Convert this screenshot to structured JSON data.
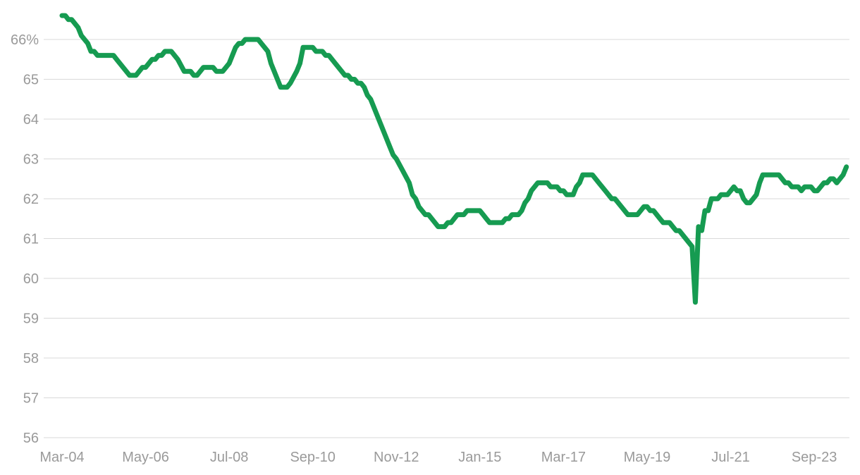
{
  "chart_data": {
    "type": "line",
    "title": "",
    "xlabel": "",
    "ylabel": "",
    "y_unit_suffix": "%",
    "ylim": [
      56,
      66.6
    ],
    "y_ticks": [
      56,
      57,
      58,
      59,
      60,
      61,
      62,
      63,
      64,
      65,
      66
    ],
    "y_tick_labels": [
      "56",
      "57",
      "58",
      "59",
      "60",
      "61",
      "62",
      "63",
      "64",
      "65",
      "66%"
    ],
    "x_range": [
      "2004-03",
      "2024-04"
    ],
    "x_tick_labels": [
      "Mar-04",
      "May-06",
      "Jul-08",
      "Sep-10",
      "Nov-12",
      "Jan-15",
      "Mar-17",
      "May-19",
      "Jul-21",
      "Sep-23"
    ],
    "x_tick_dates": [
      "2004-03",
      "2006-05",
      "2008-07",
      "2010-09",
      "2012-11",
      "2015-01",
      "2017-03",
      "2019-05",
      "2021-07",
      "2023-09"
    ],
    "grid": true,
    "legend": "none",
    "series": [
      {
        "color": "#169B51",
        "points": [
          [
            "2004-03",
            66.6
          ],
          [
            "2004-04",
            66.6
          ],
          [
            "2004-05",
            66.5
          ],
          [
            "2004-06",
            66.5
          ],
          [
            "2004-08",
            66.3
          ],
          [
            "2004-09",
            66.1
          ],
          [
            "2004-11",
            65.9
          ],
          [
            "2004-12",
            65.7
          ],
          [
            "2005-01",
            65.7
          ],
          [
            "2005-02",
            65.6
          ],
          [
            "2005-04",
            65.6
          ],
          [
            "2005-07",
            65.6
          ],
          [
            "2005-08",
            65.5
          ],
          [
            "2005-10",
            65.3
          ],
          [
            "2005-12",
            65.1
          ],
          [
            "2006-02",
            65.1
          ],
          [
            "2006-04",
            65.3
          ],
          [
            "2006-05",
            65.3
          ],
          [
            "2006-07",
            65.5
          ],
          [
            "2006-08",
            65.5
          ],
          [
            "2006-09",
            65.6
          ],
          [
            "2006-10",
            65.6
          ],
          [
            "2006-11",
            65.7
          ],
          [
            "2007-01",
            65.7
          ],
          [
            "2007-03",
            65.5
          ],
          [
            "2007-05",
            65.2
          ],
          [
            "2007-07",
            65.2
          ],
          [
            "2007-08",
            65.1
          ],
          [
            "2007-09",
            65.1
          ],
          [
            "2007-11",
            65.3
          ],
          [
            "2008-02",
            65.3
          ],
          [
            "2008-03",
            65.2
          ],
          [
            "2008-05",
            65.2
          ],
          [
            "2008-07",
            65.4
          ],
          [
            "2008-09",
            65.8
          ],
          [
            "2008-10",
            65.9
          ],
          [
            "2008-11",
            65.9
          ],
          [
            "2008-12",
            66.0
          ],
          [
            "2009-01",
            66.0
          ],
          [
            "2009-04",
            66.0
          ],
          [
            "2009-05",
            65.9
          ],
          [
            "2009-07",
            65.7
          ],
          [
            "2009-08",
            65.4
          ],
          [
            "2009-09",
            65.2
          ],
          [
            "2009-11",
            64.8
          ],
          [
            "2010-01",
            64.8
          ],
          [
            "2010-02",
            64.9
          ],
          [
            "2010-04",
            65.2
          ],
          [
            "2010-05",
            65.4
          ],
          [
            "2010-06",
            65.8
          ],
          [
            "2010-08",
            65.8
          ],
          [
            "2010-09",
            65.8
          ],
          [
            "2010-10",
            65.7
          ],
          [
            "2010-12",
            65.7
          ],
          [
            "2011-01",
            65.6
          ],
          [
            "2011-02",
            65.6
          ],
          [
            "2011-04",
            65.4
          ],
          [
            "2011-06",
            65.2
          ],
          [
            "2011-07",
            65.1
          ],
          [
            "2011-08",
            65.1
          ],
          [
            "2011-09",
            65.0
          ],
          [
            "2011-10",
            65.0
          ],
          [
            "2011-11",
            64.9
          ],
          [
            "2011-12",
            64.9
          ],
          [
            "2012-01",
            64.8
          ],
          [
            "2012-02",
            64.6
          ],
          [
            "2012-03",
            64.5
          ],
          [
            "2012-05",
            64.1
          ],
          [
            "2012-07",
            63.7
          ],
          [
            "2012-09",
            63.3
          ],
          [
            "2012-10",
            63.1
          ],
          [
            "2012-11",
            63.0
          ],
          [
            "2013-01",
            62.7
          ],
          [
            "2013-03",
            62.4
          ],
          [
            "2013-04",
            62.1
          ],
          [
            "2013-05",
            62.0
          ],
          [
            "2013-06",
            61.8
          ],
          [
            "2013-08",
            61.6
          ],
          [
            "2013-09",
            61.6
          ],
          [
            "2013-11",
            61.4
          ],
          [
            "2013-12",
            61.3
          ],
          [
            "2014-02",
            61.3
          ],
          [
            "2014-03",
            61.4
          ],
          [
            "2014-04",
            61.4
          ],
          [
            "2014-06",
            61.6
          ],
          [
            "2014-08",
            61.6
          ],
          [
            "2014-09",
            61.7
          ],
          [
            "2014-12",
            61.7
          ],
          [
            "2015-01",
            61.7
          ],
          [
            "2015-02",
            61.6
          ],
          [
            "2015-03",
            61.5
          ],
          [
            "2015-04",
            61.4
          ],
          [
            "2015-08",
            61.4
          ],
          [
            "2015-09",
            61.5
          ],
          [
            "2015-10",
            61.5
          ],
          [
            "2015-11",
            61.6
          ],
          [
            "2016-01",
            61.6
          ],
          [
            "2016-02",
            61.7
          ],
          [
            "2016-03",
            61.9
          ],
          [
            "2016-04",
            62.0
          ],
          [
            "2016-05",
            62.2
          ],
          [
            "2016-07",
            62.4
          ],
          [
            "2016-10",
            62.4
          ],
          [
            "2016-11",
            62.3
          ],
          [
            "2017-01",
            62.3
          ],
          [
            "2017-02",
            62.2
          ],
          [
            "2017-03",
            62.2
          ],
          [
            "2017-04",
            62.1
          ],
          [
            "2017-06",
            62.1
          ],
          [
            "2017-07",
            62.3
          ],
          [
            "2017-08",
            62.4
          ],
          [
            "2017-09",
            62.6
          ],
          [
            "2017-12",
            62.6
          ],
          [
            "2018-02",
            62.4
          ],
          [
            "2018-04",
            62.2
          ],
          [
            "2018-06",
            62.0
          ],
          [
            "2018-07",
            62.0
          ],
          [
            "2018-09",
            61.8
          ],
          [
            "2018-11",
            61.6
          ],
          [
            "2019-02",
            61.6
          ],
          [
            "2019-04",
            61.8
          ],
          [
            "2019-05",
            61.8
          ],
          [
            "2019-06",
            61.7
          ],
          [
            "2019-07",
            61.7
          ],
          [
            "2019-09",
            61.5
          ],
          [
            "2019-10",
            61.4
          ],
          [
            "2019-12",
            61.4
          ],
          [
            "2020-01",
            61.3
          ],
          [
            "2020-02",
            61.2
          ],
          [
            "2020-03",
            61.2
          ],
          [
            "2020-05",
            61.0
          ],
          [
            "2020-07",
            60.8
          ],
          [
            "2020-08",
            59.4
          ],
          [
            "2020-09",
            61.3
          ],
          [
            "2020-10",
            61.2
          ],
          [
            "2020-11",
            61.7
          ],
          [
            "2020-12",
            61.7
          ],
          [
            "2021-01",
            62.0
          ],
          [
            "2021-03",
            62.0
          ],
          [
            "2021-04",
            62.1
          ],
          [
            "2021-06",
            62.1
          ],
          [
            "2021-08",
            62.3
          ],
          [
            "2021-09",
            62.2
          ],
          [
            "2021-10",
            62.2
          ],
          [
            "2021-11",
            62.0
          ],
          [
            "2021-12",
            61.9
          ],
          [
            "2022-01",
            61.9
          ],
          [
            "2022-03",
            62.1
          ],
          [
            "2022-04",
            62.4
          ],
          [
            "2022-05",
            62.6
          ],
          [
            "2022-09",
            62.6
          ],
          [
            "2022-10",
            62.6
          ],
          [
            "2022-12",
            62.4
          ],
          [
            "2023-01",
            62.4
          ],
          [
            "2023-02",
            62.3
          ],
          [
            "2023-04",
            62.3
          ],
          [
            "2023-05",
            62.2
          ],
          [
            "2023-06",
            62.3
          ],
          [
            "2023-08",
            62.3
          ],
          [
            "2023-09",
            62.2
          ],
          [
            "2023-10",
            62.2
          ],
          [
            "2023-12",
            62.4
          ],
          [
            "2024-01",
            62.4
          ],
          [
            "2024-02",
            62.5
          ],
          [
            "2024-03",
            62.5
          ],
          [
            "2024-04",
            62.4
          ],
          [
            "2024-06",
            62.6
          ],
          [
            "2024-07",
            62.8
          ]
        ]
      }
    ]
  }
}
